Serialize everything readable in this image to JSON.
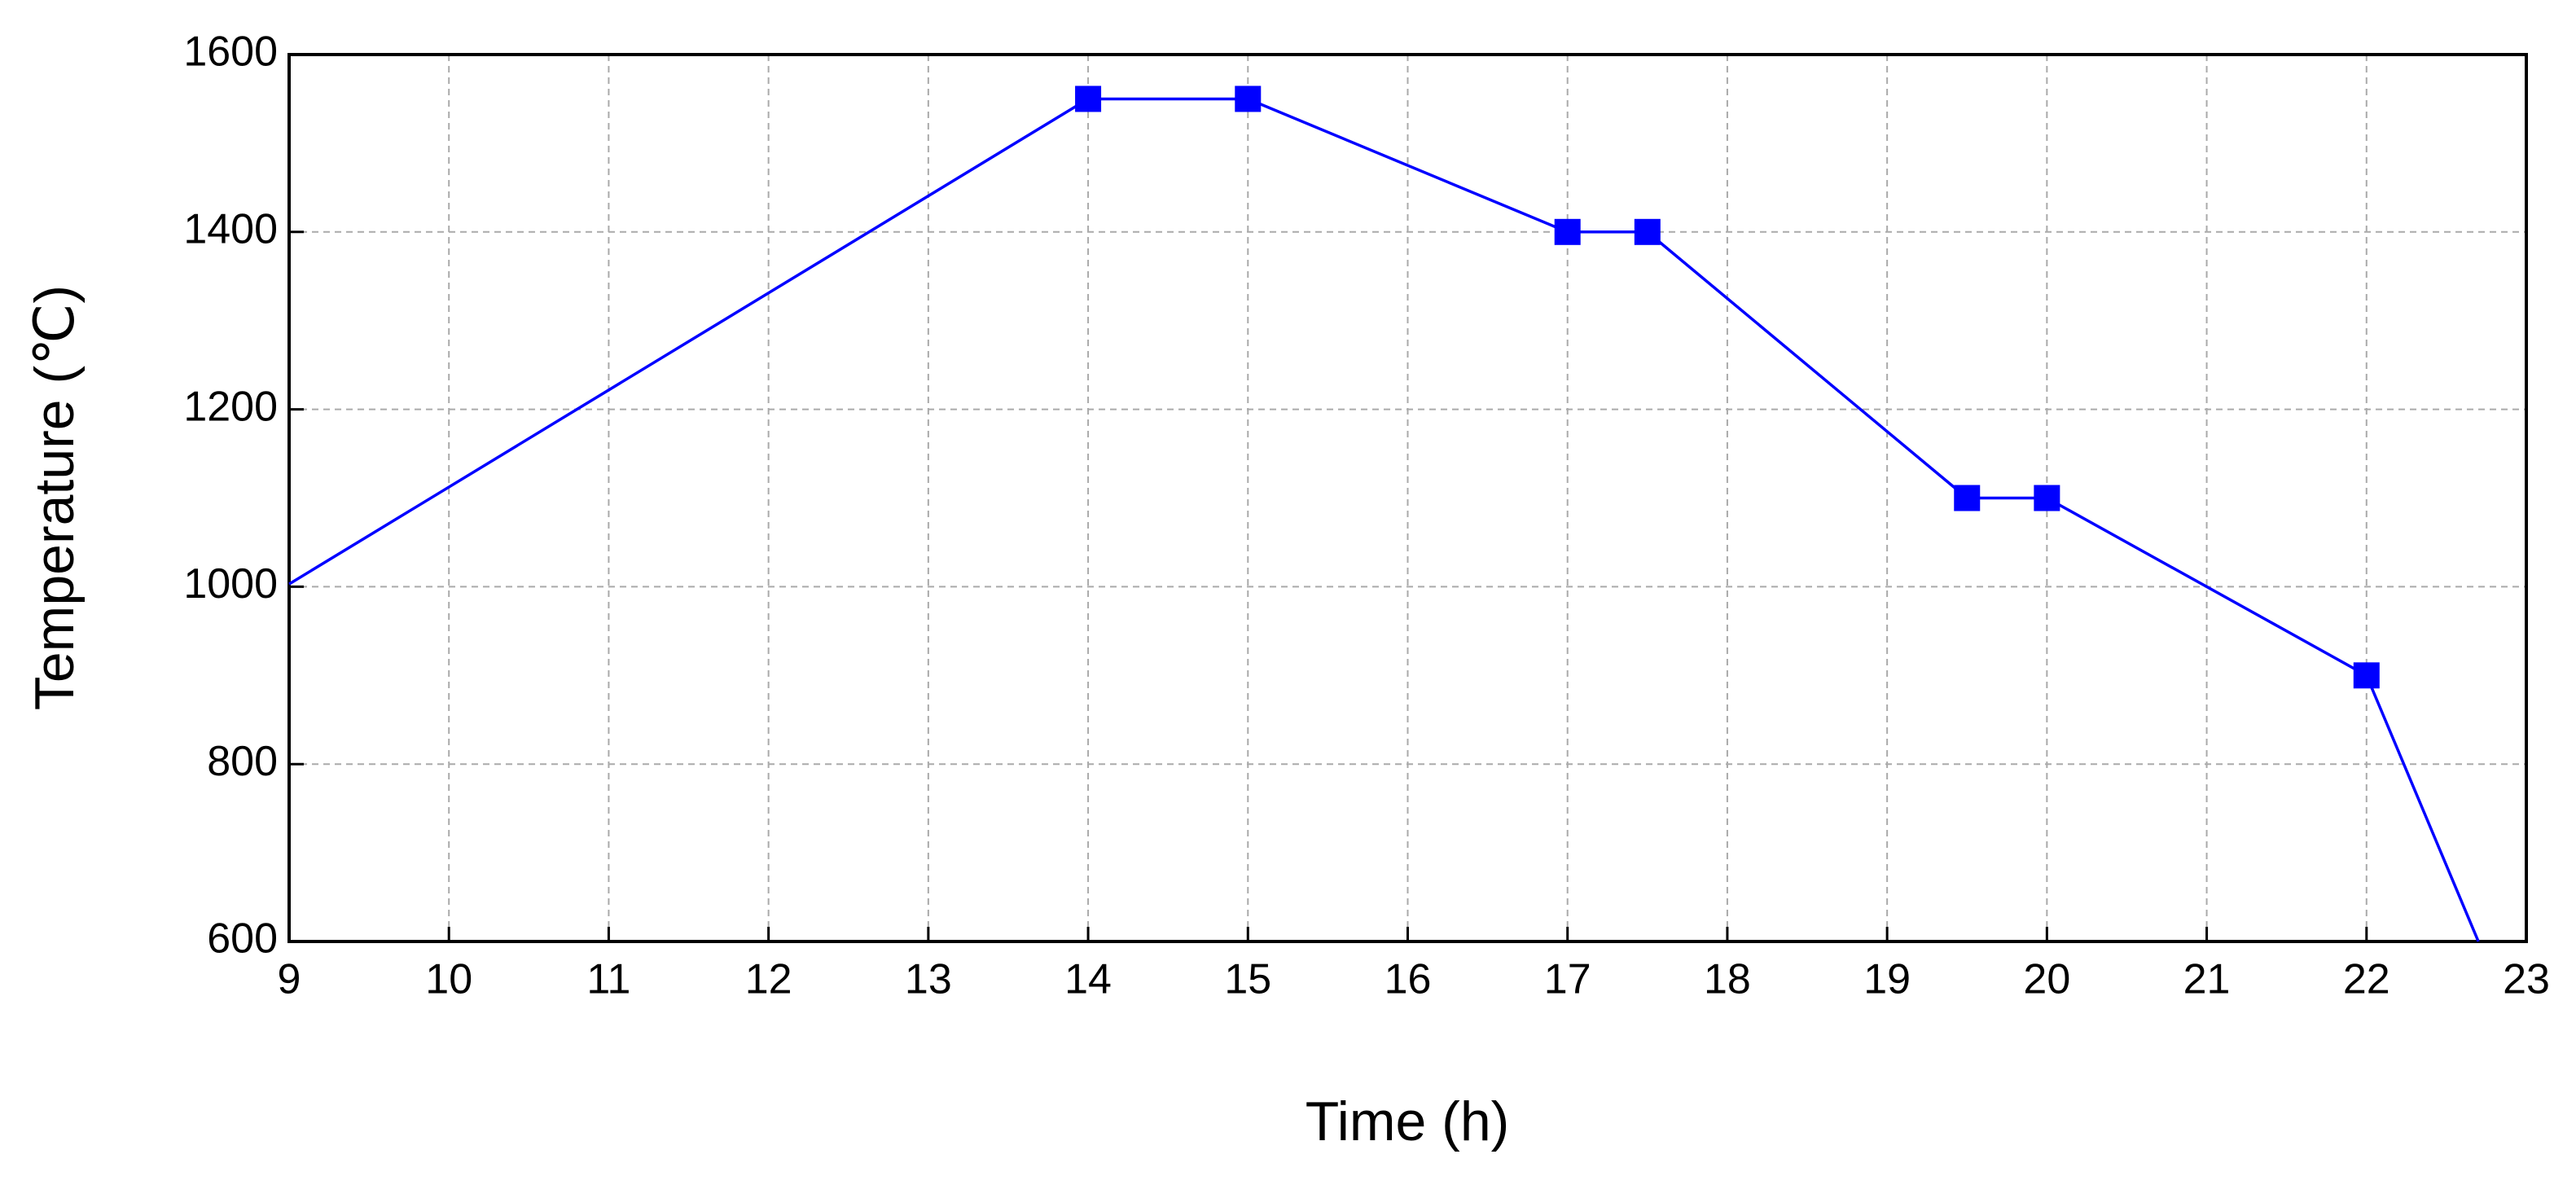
{
  "chart_data": {
    "type": "line",
    "x_label": "Time (h)",
    "y_label": "Temperature (℃)",
    "xlim": [
      9,
      23
    ],
    "xticks": [
      9,
      10,
      11,
      12,
      13,
      14,
      15,
      16,
      17,
      18,
      19,
      20,
      21,
      22,
      23
    ],
    "ylim": [
      600,
      1600
    ],
    "yticks": [
      600,
      800,
      1000,
      1200,
      1400,
      1600
    ],
    "grid": true,
    "series": [
      {
        "type": "line",
        "color": "#0000ff",
        "x": [
          9,
          14,
          15,
          17,
          17.5,
          19.5,
          20,
          22,
          22.7
        ],
        "values": [
          1003,
          1550,
          1550,
          1400,
          1400,
          1100,
          1100,
          900,
          600
        ]
      },
      {
        "type": "scatter",
        "marker": "square",
        "color": "#0000ff",
        "x": [
          14,
          15,
          17,
          17.5,
          19.5,
          20,
          22
        ],
        "values": [
          1550,
          1550,
          1400,
          1400,
          1100,
          1100,
          900
        ]
      }
    ]
  }
}
